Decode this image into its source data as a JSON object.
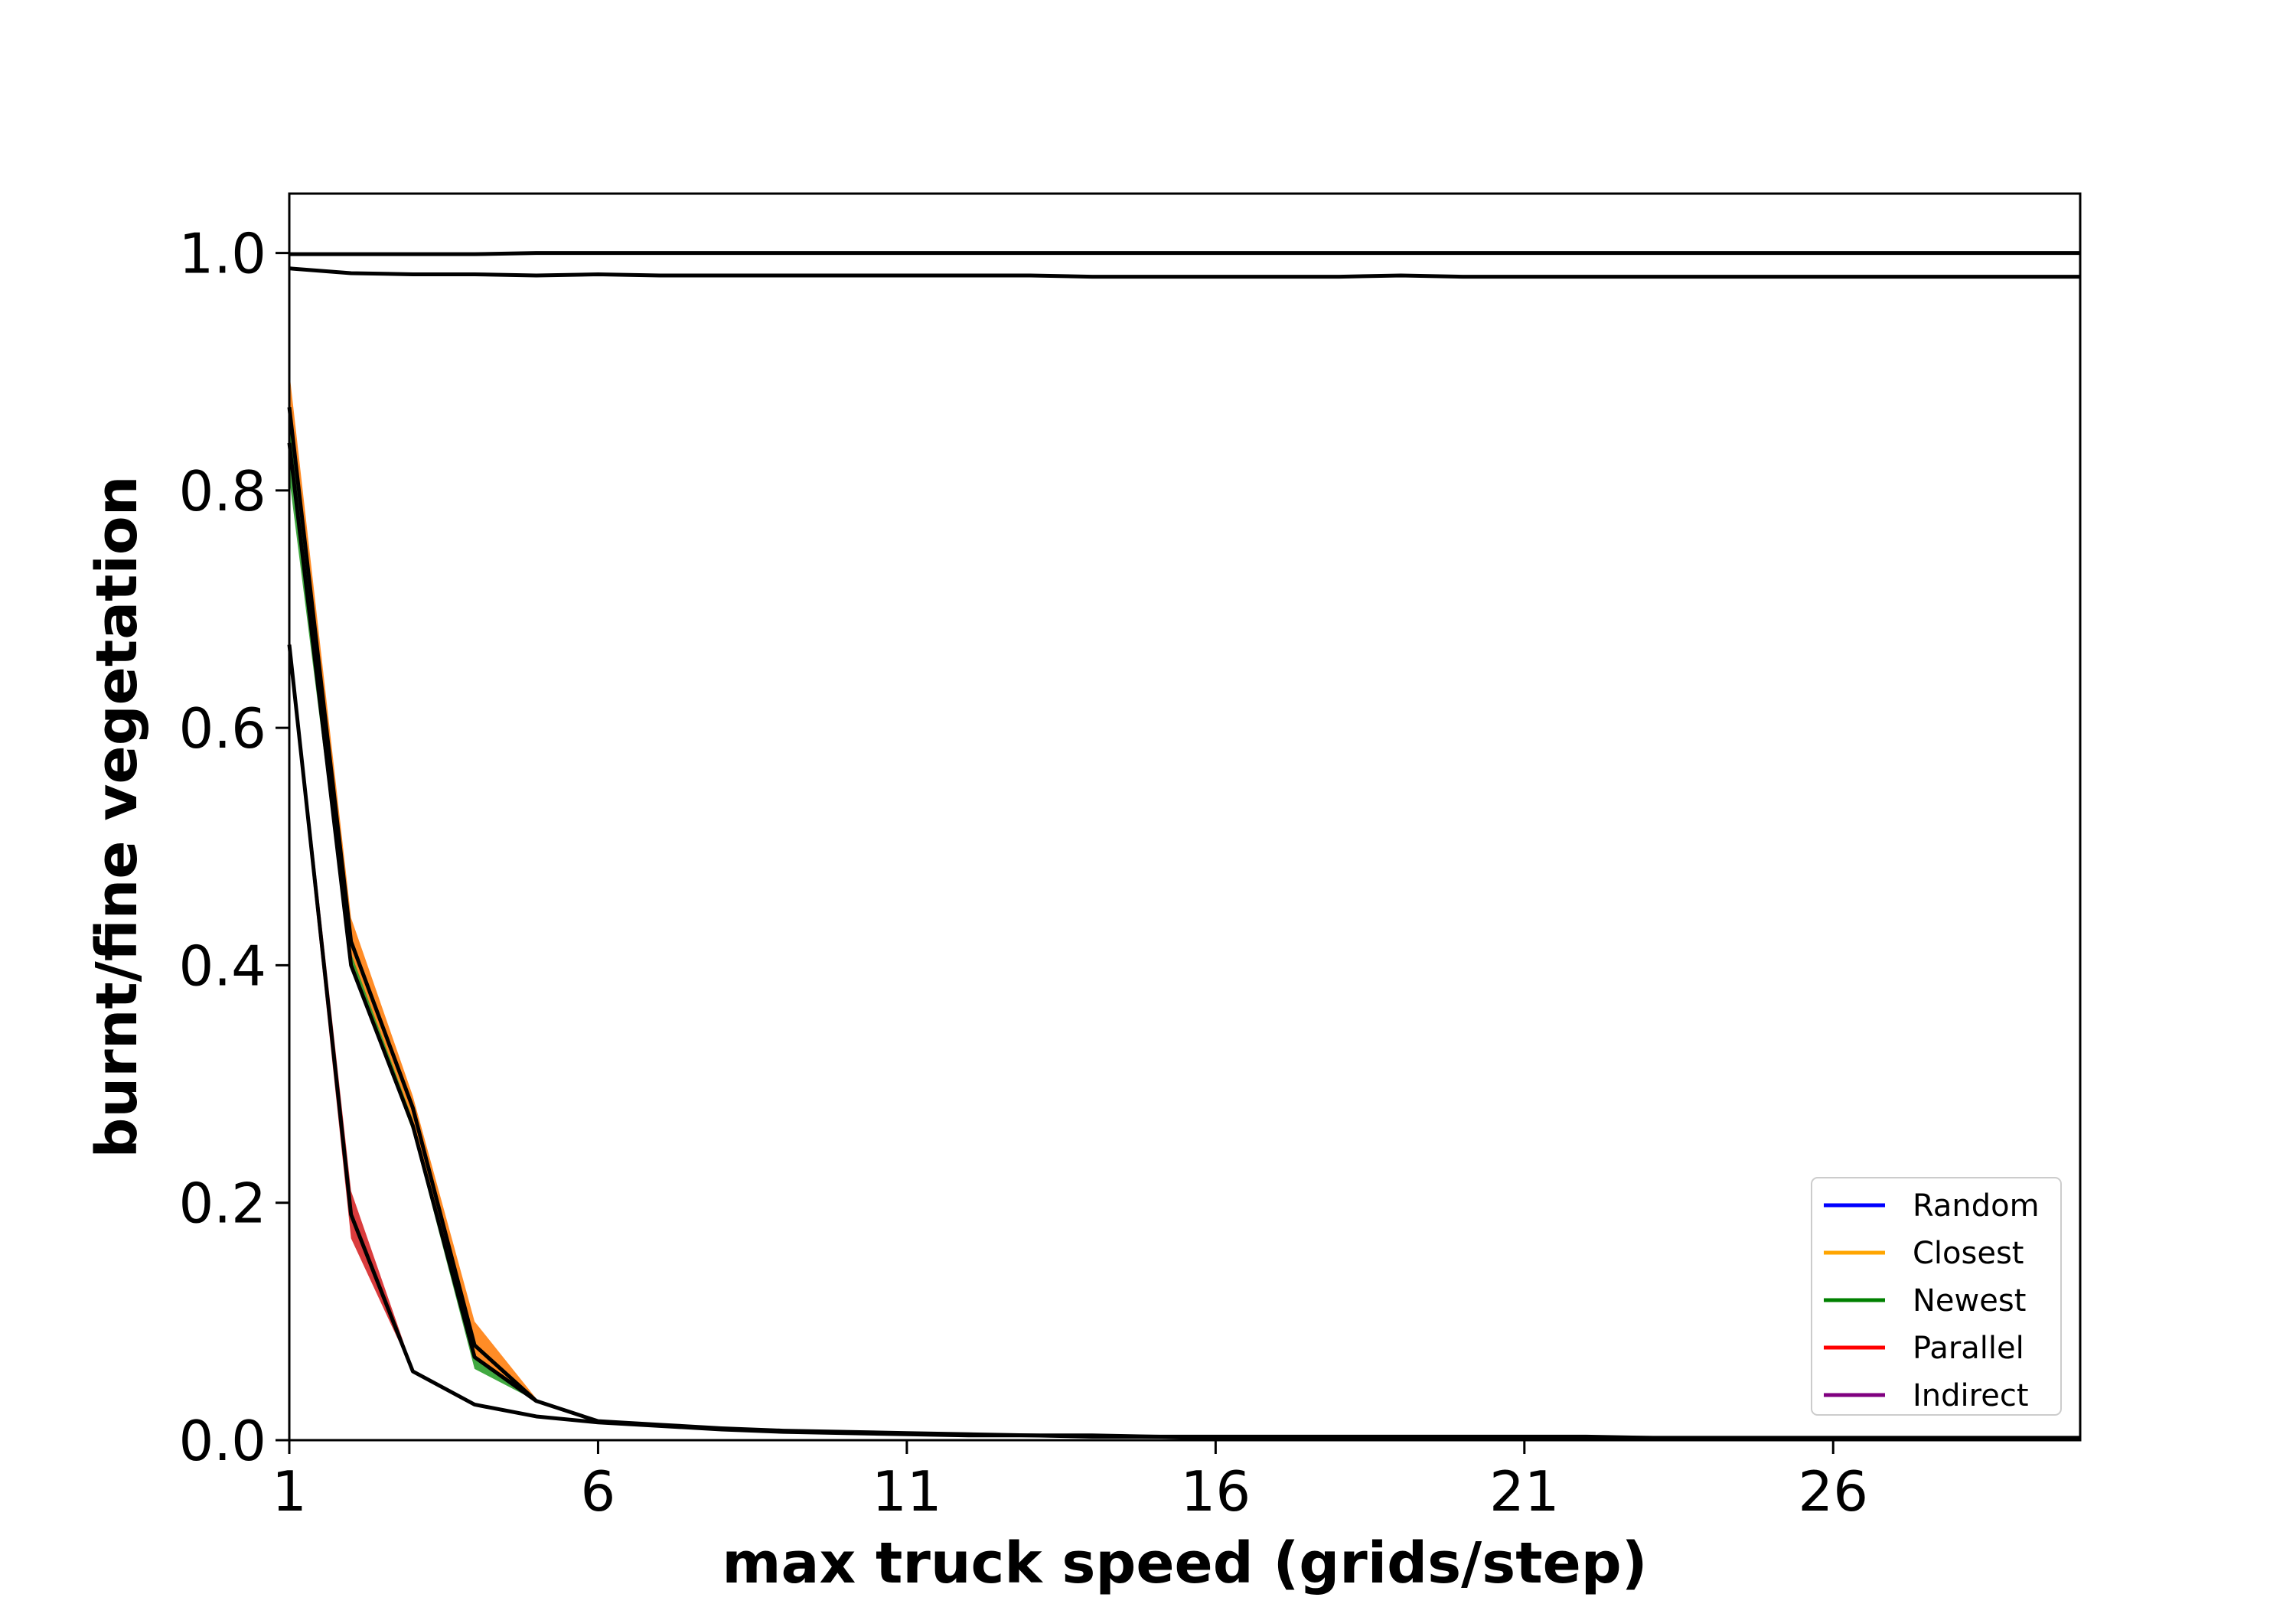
{
  "chart_data": {
    "type": "line",
    "title": "",
    "xlabel": "max truck speed (grids/step)",
    "ylabel": "burnt/fine vegetation",
    "xlim": [
      1,
      30
    ],
    "ylim": [
      0,
      1.05
    ],
    "xticks": [
      1,
      6,
      11,
      16,
      21,
      26
    ],
    "yticks": [
      0.0,
      0.2,
      0.4,
      0.6,
      0.8,
      1.0
    ],
    "ytick_labels": [
      "0.0",
      "0.2",
      "0.4",
      "0.6",
      "0.8",
      "1.0"
    ],
    "grid": false,
    "legend_position": "lower-right",
    "legend": [
      {
        "name": "Random",
        "color": "#0000ff"
      },
      {
        "name": "Closest",
        "color": "#ffa500"
      },
      {
        "name": "Newest",
        "color": "#008000"
      },
      {
        "name": "Parallel",
        "color": "#ff0000"
      },
      {
        "name": "Indirect",
        "color": "#800080"
      }
    ],
    "bands": [
      {
        "color": "#ff7f0e",
        "x": [
          1,
          2,
          3,
          4,
          5
        ],
        "lower": [
          0.85,
          0.4,
          0.26,
          0.07,
          0.033
        ],
        "upper": [
          0.9,
          0.44,
          0.29,
          0.1,
          0.035
        ]
      },
      {
        "color": "#2ca02c",
        "x": [
          1,
          2,
          3,
          4,
          5
        ],
        "lower": [
          0.81,
          0.4,
          0.26,
          0.06,
          0.033
        ],
        "upper": [
          0.86,
          0.41,
          0.27,
          0.07,
          0.034
        ]
      },
      {
        "color": "#d62728",
        "x": [
          1,
          2,
          3
        ],
        "lower": [
          0.66,
          0.17,
          0.058
        ],
        "upper": [
          0.68,
          0.21,
          0.06
        ]
      }
    ],
    "series": [
      {
        "color": "#000000",
        "x": [
          1,
          2,
          3,
          4,
          5,
          6,
          7,
          8,
          9,
          10,
          11,
          12,
          13,
          14,
          15,
          16,
          17,
          18,
          19,
          20,
          21,
          22,
          23,
          24,
          25,
          26,
          27,
          28,
          29,
          30
        ],
        "y": [
          0.999,
          0.999,
          0.999,
          0.999,
          1.0,
          1.0,
          1.0,
          1.0,
          1.0,
          1.0,
          1.0,
          1.0,
          1.0,
          1.0,
          1.0,
          1.0,
          1.0,
          1.0,
          1.0,
          1.0,
          1.0,
          1.0,
          1.0,
          1.0,
          1.0,
          1.0,
          1.0,
          1.0,
          1.0,
          1.0
        ]
      },
      {
        "color": "#000000",
        "x": [
          1,
          2,
          3,
          4,
          5,
          6,
          7,
          8,
          9,
          10,
          11,
          12,
          13,
          14,
          15,
          16,
          17,
          18,
          19,
          20,
          21,
          22,
          23,
          24,
          25,
          26,
          27,
          28,
          29,
          30
        ],
        "y": [
          0.987,
          0.983,
          0.982,
          0.982,
          0.981,
          0.982,
          0.981,
          0.981,
          0.981,
          0.981,
          0.981,
          0.981,
          0.981,
          0.98,
          0.98,
          0.98,
          0.98,
          0.98,
          0.981,
          0.98,
          0.98,
          0.98,
          0.98,
          0.98,
          0.98,
          0.98,
          0.98,
          0.98,
          0.98,
          0.98
        ]
      },
      {
        "color": "#000000",
        "x": [
          1,
          2,
          3,
          4,
          5,
          6,
          7,
          8,
          9,
          10,
          11,
          12,
          13,
          14,
          15,
          16,
          17,
          18,
          19,
          20,
          21,
          22,
          23,
          24,
          25,
          26,
          27,
          28,
          29,
          30
        ],
        "y": [
          0.87,
          0.42,
          0.28,
          0.08,
          0.033,
          0.016,
          0.013,
          0.01,
          0.008,
          0.007,
          0.006,
          0.005,
          0.004,
          0.004,
          0.003,
          0.003,
          0.003,
          0.003,
          0.003,
          0.003,
          0.003,
          0.003,
          0.002,
          0.002,
          0.002,
          0.002,
          0.002,
          0.002,
          0.002,
          0.002
        ]
      },
      {
        "color": "#000000",
        "x": [
          1,
          2,
          3,
          4,
          5
        ],
        "y": [
          0.84,
          0.4,
          0.265,
          0.07,
          0.033
        ]
      },
      {
        "color": "#000000",
        "x": [
          1,
          2,
          3,
          4,
          5,
          6,
          7,
          8,
          9,
          10,
          11,
          12,
          13,
          14,
          15,
          16,
          17,
          18,
          19,
          20,
          21,
          22,
          23,
          24,
          25,
          26,
          27,
          28,
          29,
          30
        ],
        "y": [
          0.67,
          0.19,
          0.058,
          0.03,
          0.02,
          0.015,
          0.012,
          0.009,
          0.007,
          0.006,
          0.005,
          0.004,
          0.004,
          0.003,
          0.003,
          0.002,
          0.002,
          0.002,
          0.002,
          0.002,
          0.002,
          0.002,
          0.002,
          0.001,
          0.001,
          0.001,
          0.001,
          0.001,
          0.001,
          0.001
        ]
      }
    ]
  }
}
